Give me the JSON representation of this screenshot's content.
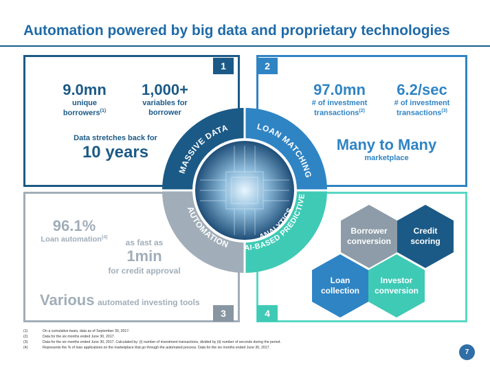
{
  "title": "Automation powered by big data and proprietary technologies",
  "panels": {
    "p1": {
      "number": "1",
      "stat1_value": "9.0mn",
      "stat1_label_l1": "unique",
      "stat1_label_l2": "borrowers",
      "stat1_sup": "(1)",
      "stat2_value": "1,000+",
      "stat2_label_l1": "variables for",
      "stat2_label_l2": "borrower",
      "history_label": "Data stretches back for",
      "history_value": "10 years"
    },
    "p2": {
      "number": "2",
      "stat1_value": "97.0mn",
      "stat1_label_l1": "# of investment",
      "stat1_label_l2": "transactions",
      "stat1_sup": "(2)",
      "stat2_value": "6.2/sec",
      "stat2_label_l1": "# of investment",
      "stat2_label_l2": "transactions",
      "stat2_sup": "(3)",
      "headline": "Many to Many",
      "sub": "marketplace"
    },
    "p3": {
      "number": "3",
      "stat1_value": "96.1%",
      "stat1_label": "Loan automation",
      "stat1_sup": "(4)",
      "fast_label": "as fast as",
      "fast_value": "1min",
      "fast_sub": "for credit approval",
      "various_big": "Various",
      "various_small": "automated investing tools"
    },
    "p4": {
      "number": "4",
      "hexes": [
        {
          "l1": "Borrower",
          "l2": "conversion",
          "color": "#8d9ca8"
        },
        {
          "l1": "Credit",
          "l2": "scoring",
          "color": "#1b5a86"
        },
        {
          "l1": "Loan",
          "l2": "collection",
          "color": "#2f84c4"
        },
        {
          "l1": "Investor",
          "l2": "conversion",
          "color": "#3fcab5"
        }
      ]
    }
  },
  "ring": {
    "q1": "MASSIVE DATA",
    "q2": "LOAN MATCHING",
    "q3": "AUTOMATION",
    "q4_l1": "AI-BASED PREDICTIVE",
    "q4_l2": "ANALYTICS",
    "colors": {
      "q1": "#1b5a86",
      "q2": "#2f84c4",
      "q3": "#a1aeb9",
      "q4": "#3fcab5"
    }
  },
  "footnotes": [
    {
      "num": "(1)",
      "text": "On a cumulative basis, data as of September 30, 2017."
    },
    {
      "num": "(2)",
      "text": "Data for the six months ended June 30, 2017."
    },
    {
      "num": "(3)",
      "text": "Data for the six months ended June 30, 2017. Calculated by: (i) number of investment transactions, divided by (ii) number of seconds during the period."
    },
    {
      "num": "(4)",
      "text": "Represents the % of loan applications on the marketplace that go through the automated process. Data for the six months ended June 30, 2017."
    }
  ],
  "page_number": "7"
}
